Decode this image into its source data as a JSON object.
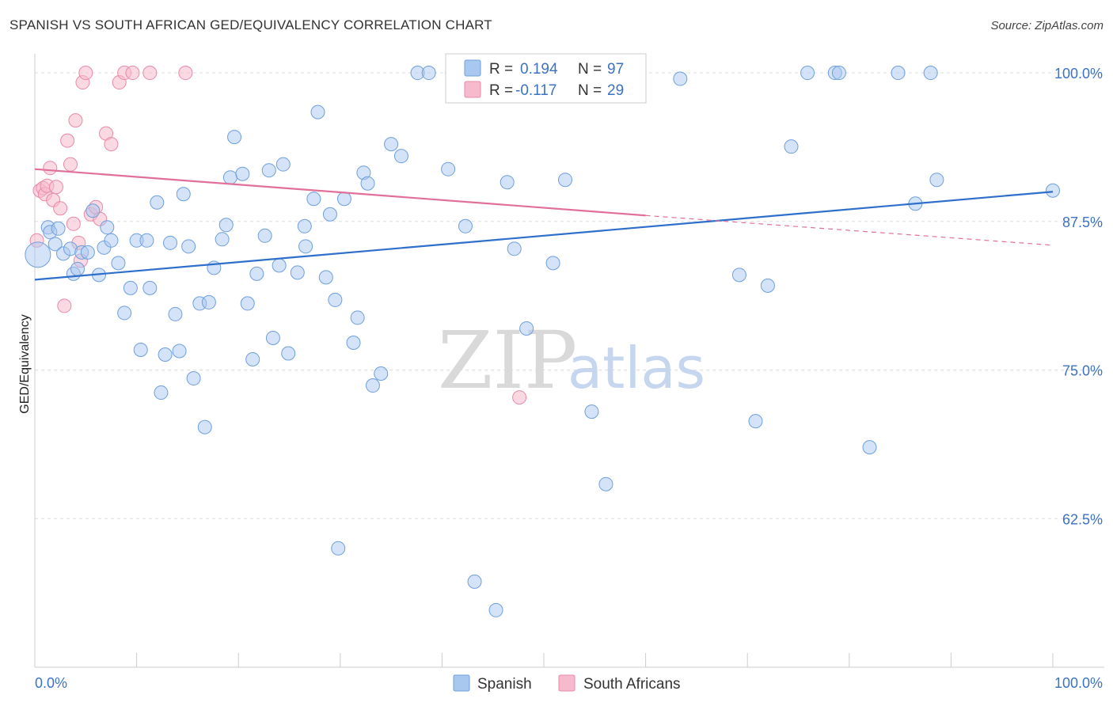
{
  "header": {
    "title": "SPANISH VS SOUTH AFRICAN GED/EQUIVALENCY CORRELATION CHART",
    "source": "Source: ZipAtlas.com"
  },
  "watermark": {
    "zip": "ZIP",
    "atlas": "atlas"
  },
  "legend": {
    "rows": [
      {
        "r_label": "R =",
        "r_value": "0.194",
        "n_label": "N =",
        "n_value": "97",
        "color": "#a9c8f0"
      },
      {
        "r_label": "R =",
        "r_value": "-0.117",
        "n_label": "N =",
        "n_value": "29",
        "color": "#f7b9cc"
      }
    ]
  },
  "bottom_legend": [
    {
      "label": "Spanish",
      "color": "#a9c8f0"
    },
    {
      "label": "South Africans",
      "color": "#f7b9cc"
    }
  ],
  "colors": {
    "spanish_fill": "#a9c8f0",
    "spanish_stroke": "#6f9fdc",
    "spanish_line": "#2f6fcc",
    "sa_fill": "#f7b9cc",
    "sa_stroke": "#e88aa8",
    "sa_line": "#e0709a",
    "grid": "#dddddd",
    "axis_text": "#3b72c4"
  },
  "chart_data": {
    "type": "scatter",
    "title": "SPANISH VS SOUTH AFRICAN GED/EQUIVALENCY CORRELATION CHART",
    "xlabel": "",
    "ylabel": "GED/Equivalency",
    "xlim": [
      0,
      100
    ],
    "ylim": [
      50,
      102
    ],
    "x_tick_labels": [
      "0.0%",
      "100.0%"
    ],
    "y_ticks": [
      62.5,
      75.0,
      87.5,
      100.0
    ],
    "y_tick_labels": [
      "62.5%",
      "75.0%",
      "87.5%",
      "100.0%"
    ],
    "grid": true,
    "legend_position": "top-center",
    "series": [
      {
        "name": "Spanish",
        "r": 0.194,
        "n": 97,
        "trend": {
          "x": [
            0,
            100
          ],
          "y": [
            82.6,
            90.0
          ]
        },
        "points": [
          [
            0.3,
            84.7
          ],
          [
            1.3,
            87.0
          ],
          [
            1.5,
            86.6
          ],
          [
            2.0,
            85.6
          ],
          [
            2.3,
            86.9
          ],
          [
            2.8,
            84.8
          ],
          [
            3.5,
            85.2
          ],
          [
            3.8,
            83.1
          ],
          [
            4.2,
            83.5
          ],
          [
            4.6,
            84.9
          ],
          [
            5.2,
            84.9
          ],
          [
            5.7,
            88.4
          ],
          [
            6.3,
            83.0
          ],
          [
            6.8,
            85.3
          ],
          [
            7.1,
            87.0
          ],
          [
            7.5,
            85.9
          ],
          [
            8.2,
            84.0
          ],
          [
            8.8,
            79.8
          ],
          [
            9.4,
            81.9
          ],
          [
            10.0,
            85.9
          ],
          [
            10.4,
            76.7
          ],
          [
            11.0,
            85.9
          ],
          [
            11.3,
            81.9
          ],
          [
            12.0,
            89.1
          ],
          [
            12.4,
            73.1
          ],
          [
            12.8,
            76.3
          ],
          [
            13.3,
            85.7
          ],
          [
            13.8,
            79.7
          ],
          [
            14.2,
            76.6
          ],
          [
            14.6,
            89.8
          ],
          [
            15.1,
            85.4
          ],
          [
            15.6,
            74.3
          ],
          [
            16.2,
            80.6
          ],
          [
            16.7,
            70.2
          ],
          [
            17.1,
            80.7
          ],
          [
            17.6,
            83.6
          ],
          [
            18.4,
            86.0
          ],
          [
            18.8,
            87.2
          ],
          [
            19.2,
            91.2
          ],
          [
            19.6,
            94.6
          ],
          [
            20.4,
            91.5
          ],
          [
            20.9,
            80.6
          ],
          [
            21.4,
            75.9
          ],
          [
            21.8,
            83.1
          ],
          [
            22.6,
            86.3
          ],
          [
            23.0,
            91.8
          ],
          [
            23.4,
            77.7
          ],
          [
            24.0,
            83.8
          ],
          [
            24.4,
            92.3
          ],
          [
            24.9,
            76.4
          ],
          [
            25.8,
            83.2
          ],
          [
            26.5,
            87.1
          ],
          [
            26.6,
            85.4
          ],
          [
            27.4,
            89.4
          ],
          [
            27.8,
            96.7
          ],
          [
            28.6,
            82.8
          ],
          [
            29.0,
            88.1
          ],
          [
            29.5,
            80.9
          ],
          [
            29.8,
            60.0
          ],
          [
            30.4,
            89.4
          ],
          [
            31.3,
            77.3
          ],
          [
            31.7,
            79.4
          ],
          [
            32.3,
            91.6
          ],
          [
            32.7,
            90.7
          ],
          [
            33.2,
            73.7
          ],
          [
            34.0,
            74.7
          ],
          [
            35.0,
            94.0
          ],
          [
            36.0,
            93.0
          ],
          [
            37.6,
            100.0
          ],
          [
            38.7,
            100.0
          ],
          [
            40.6,
            91.9
          ],
          [
            41.0,
            100.0
          ],
          [
            42.3,
            87.1
          ],
          [
            43.2,
            57.2
          ],
          [
            45.3,
            54.8
          ],
          [
            46.4,
            90.8
          ],
          [
            47.1,
            85.2
          ],
          [
            48.3,
            78.5
          ],
          [
            50.9,
            84.0
          ],
          [
            52.1,
            91.0
          ],
          [
            54.7,
            71.5
          ],
          [
            56.1,
            65.4
          ],
          [
            56.5,
            100.0
          ],
          [
            63.4,
            99.5
          ],
          [
            69.2,
            83.0
          ],
          [
            70.8,
            70.7
          ],
          [
            72.0,
            82.1
          ],
          [
            74.3,
            93.8
          ],
          [
            75.9,
            100.0
          ],
          [
            78.6,
            100.0
          ],
          [
            79.0,
            100.0
          ],
          [
            82.0,
            68.5
          ],
          [
            84.8,
            100.0
          ],
          [
            86.5,
            89.0
          ],
          [
            88.0,
            100.0
          ],
          [
            88.6,
            91.0
          ],
          [
            100.0,
            90.1
          ]
        ]
      },
      {
        "name": "South Africans",
        "r": -0.117,
        "n": 29,
        "trend": {
          "x": [
            0,
            60,
            100
          ],
          "y": [
            91.9,
            88.0,
            85.5
          ]
        },
        "points": [
          [
            0.2,
            85.9
          ],
          [
            0.5,
            90.1
          ],
          [
            0.8,
            90.3
          ],
          [
            1.0,
            89.8
          ],
          [
            1.2,
            90.5
          ],
          [
            1.5,
            92.0
          ],
          [
            1.8,
            89.3
          ],
          [
            2.1,
            90.4
          ],
          [
            2.5,
            88.6
          ],
          [
            2.9,
            80.4
          ],
          [
            3.2,
            94.3
          ],
          [
            3.5,
            92.3
          ],
          [
            3.8,
            87.3
          ],
          [
            4.0,
            96.0
          ],
          [
            4.3,
            85.7
          ],
          [
            4.5,
            84.2
          ],
          [
            4.7,
            99.2
          ],
          [
            5.0,
            100.0
          ],
          [
            5.5,
            88.1
          ],
          [
            6.0,
            88.7
          ],
          [
            6.4,
            87.7
          ],
          [
            7.0,
            94.9
          ],
          [
            7.5,
            94.0
          ],
          [
            8.3,
            99.2
          ],
          [
            8.8,
            100.0
          ],
          [
            9.6,
            100.0
          ],
          [
            11.3,
            100.0
          ],
          [
            14.8,
            100.0
          ],
          [
            47.6,
            72.7
          ]
        ]
      }
    ]
  }
}
